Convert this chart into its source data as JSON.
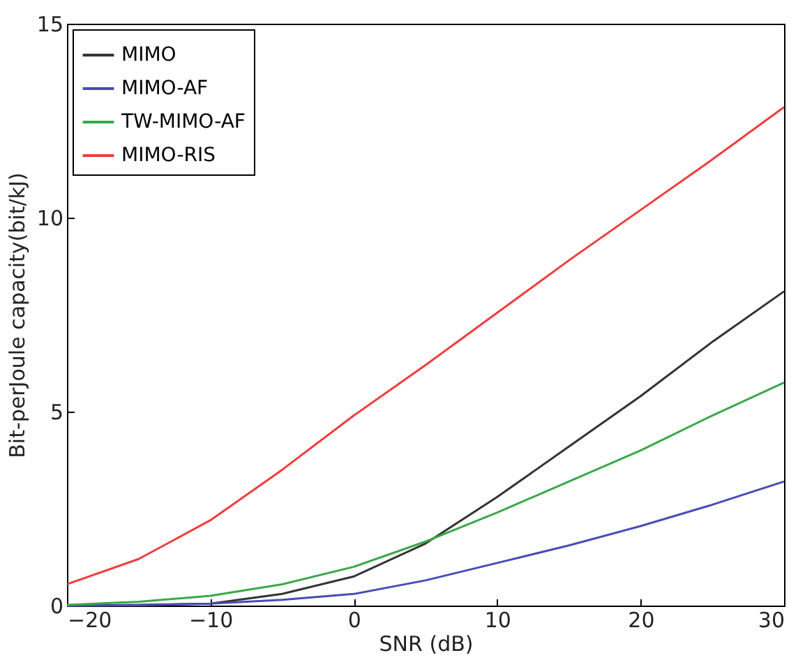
{
  "chart_data": {
    "type": "line",
    "xlabel": "SNR (dB)",
    "ylabel": "Bit-perJoule capacity(bit/kJ)",
    "x": [
      -20,
      -15,
      -10,
      -5,
      0,
      5,
      10,
      15,
      20,
      25,
      30
    ],
    "series": [
      {
        "name": "MIMO",
        "color": "#333333",
        "values": [
          0,
          0.02,
          0.05,
          0.3,
          0.75,
          1.6,
          2.8,
          4.1,
          5.4,
          6.8,
          8.1
        ]
      },
      {
        "name": "MIMO-AF",
        "color": "#4a4ab8",
        "values": [
          0,
          0.01,
          0.05,
          0.15,
          0.3,
          0.65,
          1.1,
          1.55,
          2.05,
          2.6,
          3.2
        ]
      },
      {
        "name": "TW-MIMO-AF",
        "color": "#3aa84a",
        "values": [
          0.02,
          0.1,
          0.25,
          0.55,
          1.0,
          1.65,
          2.4,
          3.2,
          4.0,
          4.9,
          5.75
        ]
      },
      {
        "name": "MIMO-RIS",
        "color": "#f03c3c",
        "values": [
          0.55,
          1.2,
          2.2,
          3.5,
          4.9,
          6.2,
          7.55,
          8.9,
          10.2,
          11.5,
          12.85
        ]
      }
    ],
    "xlim": [
      -20,
      30
    ],
    "xticks": [
      -20,
      -10,
      0,
      10,
      20,
      30
    ],
    "ylim": [
      0,
      15
    ],
    "yticks": [
      0,
      5,
      10,
      15
    ],
    "legend": "top left",
    "grid": false,
    "marker": "none",
    "line_style": "solid"
  }
}
